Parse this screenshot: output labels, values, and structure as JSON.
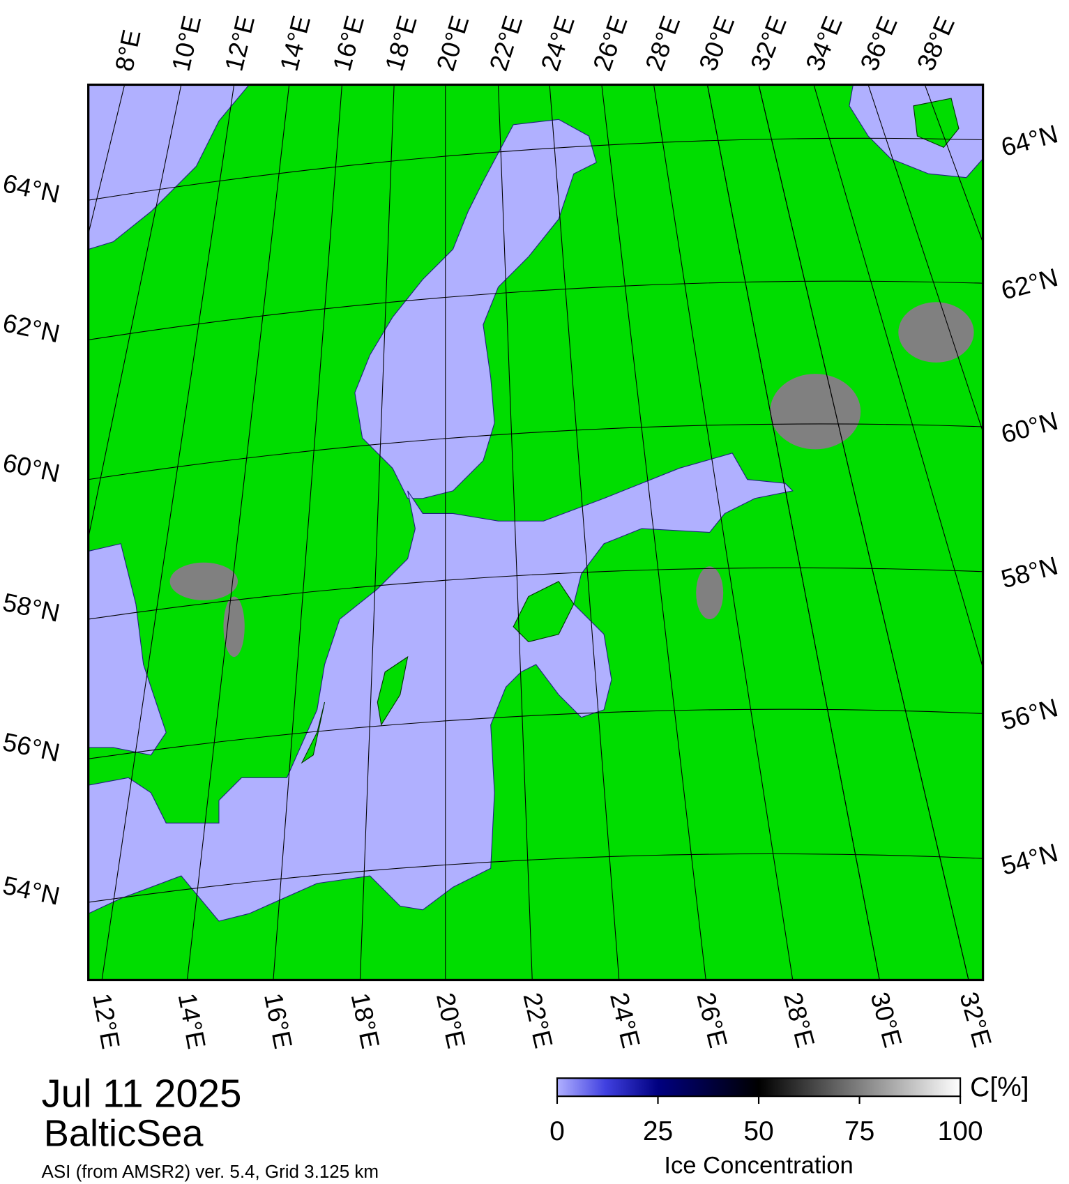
{
  "map": {
    "date": "Jul 11 2025",
    "region": "BalticSea",
    "caption": "ASI (from AMSR2) ver. 5.4,  Grid 3.125 km",
    "top_labels": [
      "8°E",
      "10°E",
      "12°E",
      "14°E",
      "16°E",
      "18°E",
      "20°E",
      "22°E",
      "24°E",
      "26°E",
      "28°E",
      "30°E",
      "32°E",
      "34°E",
      "36°E",
      "38°E"
    ],
    "bottom_labels": [
      "12°E",
      "14°E",
      "16°E",
      "18°E",
      "20°E",
      "22°E",
      "24°E",
      "26°E",
      "28°E",
      "30°E",
      "32°E"
    ],
    "left_labels": [
      "64°N",
      "62°N",
      "60°N",
      "58°N",
      "56°N",
      "54°N"
    ],
    "right_labels": [
      "64°N",
      "62°N",
      "60°N",
      "58°N",
      "56°N",
      "54°N"
    ]
  },
  "colorbar": {
    "lim": [
      0,
      100
    ],
    "ticks": [
      0,
      25,
      50,
      75,
      100
    ],
    "unit": "C[%]",
    "label": "Ice Concentration"
  }
}
